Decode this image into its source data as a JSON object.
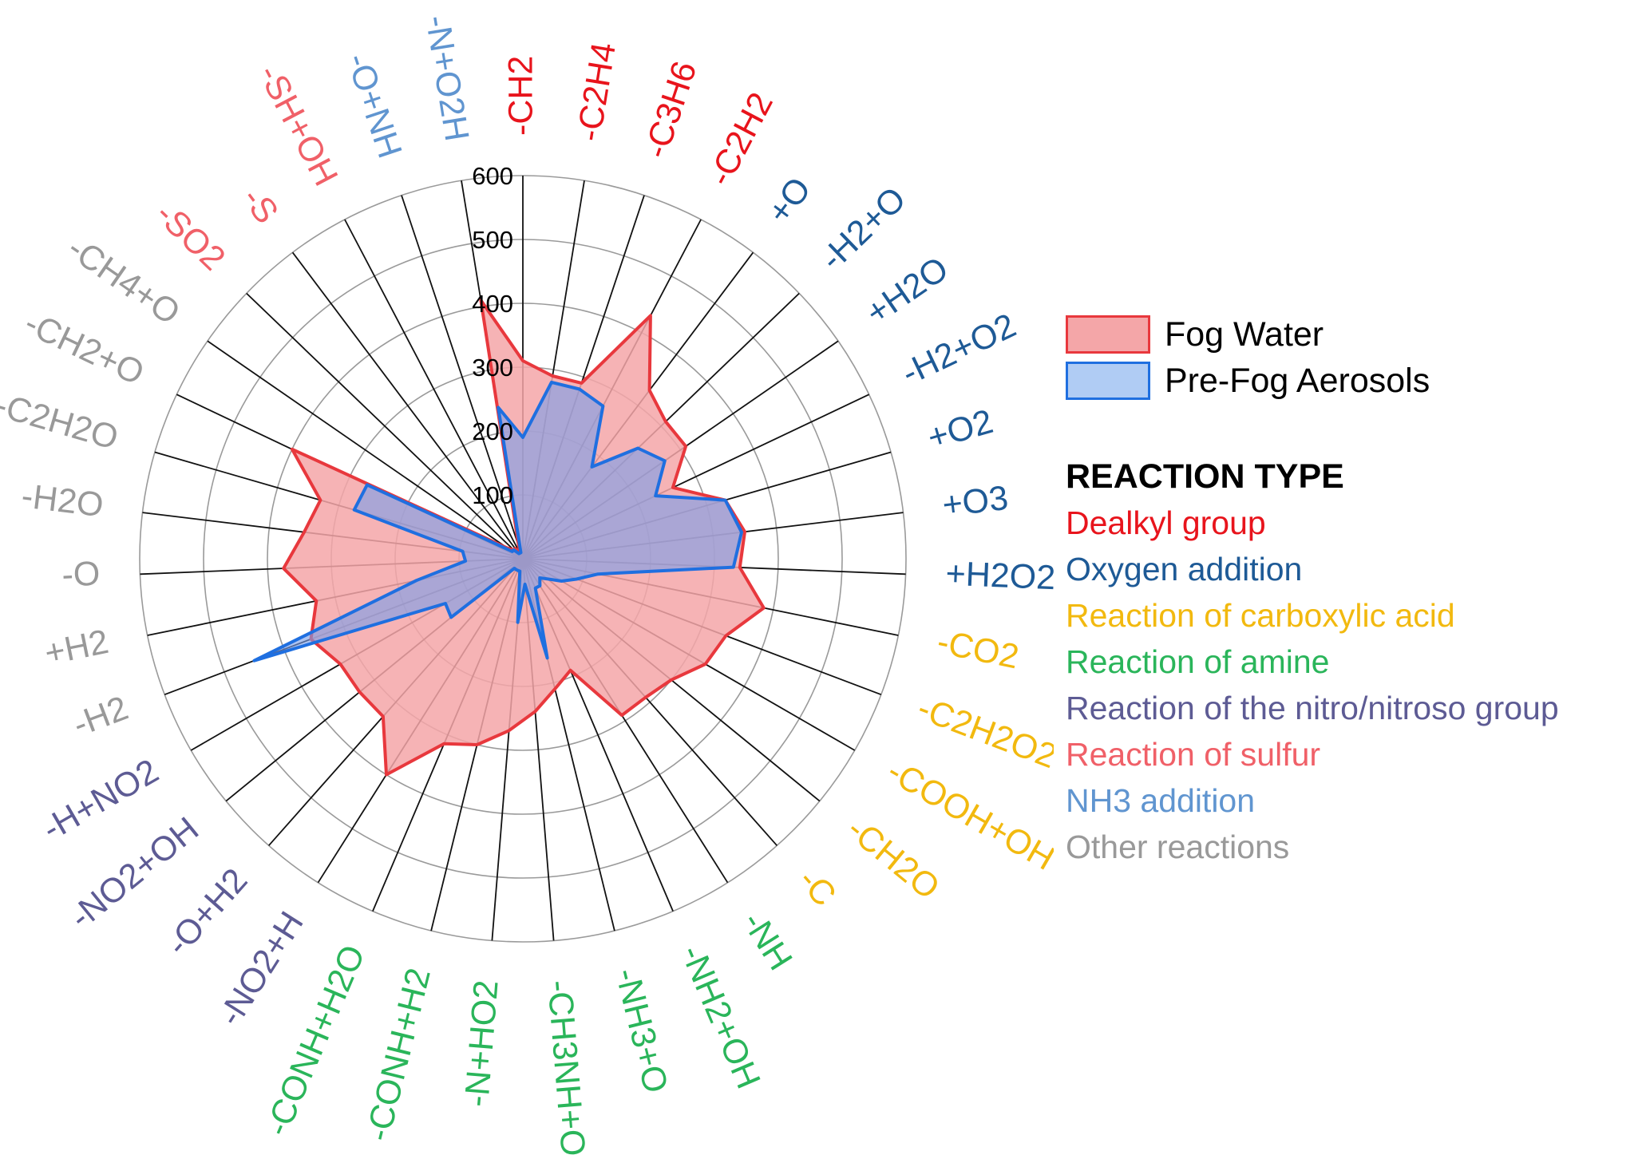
{
  "chart_data": {
    "type": "radar",
    "rmax": 600,
    "ticks": [
      100,
      200,
      300,
      400,
      500,
      600
    ],
    "tick_labels": [
      "100",
      "200",
      "300",
      "400",
      "500",
      "600"
    ],
    "categories": [
      {
        "label": "-CH2",
        "type": "dealkyl"
      },
      {
        "label": "-C2H4",
        "type": "dealkyl"
      },
      {
        "label": "-C3H6",
        "type": "dealkyl"
      },
      {
        "label": "-C2H2",
        "type": "dealkyl"
      },
      {
        "label": "+O",
        "type": "oxygen"
      },
      {
        "label": "-H2+O",
        "type": "oxygen"
      },
      {
        "label": "+H2O",
        "type": "oxygen"
      },
      {
        "label": "-H2+O2",
        "type": "oxygen"
      },
      {
        "label": "+O2",
        "type": "oxygen"
      },
      {
        "label": "+O3",
        "type": "oxygen"
      },
      {
        "label": "+H2O2",
        "type": "oxygen"
      },
      {
        "label": "-CO2",
        "type": "carboxylic"
      },
      {
        "label": "-C2H2O2",
        "type": "carboxylic"
      },
      {
        "label": "-COOH+OH",
        "type": "carboxylic"
      },
      {
        "label": "-CH2O",
        "type": "carboxylic"
      },
      {
        "label": "-C",
        "type": "carboxylic"
      },
      {
        "label": "-NH",
        "type": "amine"
      },
      {
        "label": "-NH2+OH",
        "type": "amine"
      },
      {
        "label": "-NH3+O",
        "type": "amine"
      },
      {
        "label": "-CH3NH+OH",
        "type": "amine"
      },
      {
        "label": "-N+HO2",
        "type": "amine"
      },
      {
        "label": "-CONH+H2",
        "type": "amine"
      },
      {
        "label": "-CONH+H2O",
        "type": "amine"
      },
      {
        "label": "-NO2+H",
        "type": "nitro"
      },
      {
        "label": "-O+H2",
        "type": "nitro"
      },
      {
        "label": "-NO2+OH",
        "type": "nitro"
      },
      {
        "label": "-H+NO2",
        "type": "nitro"
      },
      {
        "label": "-H2",
        "type": "other"
      },
      {
        "label": "+H2",
        "type": "other"
      },
      {
        "label": "-O",
        "type": "other"
      },
      {
        "label": "-H2O",
        "type": "other"
      },
      {
        "label": "-C2H2O",
        "type": "other"
      },
      {
        "label": "-CH2+O",
        "type": "other"
      },
      {
        "label": "-CH4+O",
        "type": "other"
      },
      {
        "label": "-SO2",
        "type": "sulfur"
      },
      {
        "label": "-S",
        "type": "sulfur"
      },
      {
        "label": "-SH+OH",
        "type": "sulfur"
      },
      {
        "label": "-O+NH",
        "type": "nh3"
      },
      {
        "label": "-N+O2H",
        "type": "nh3"
      }
    ],
    "series": [
      {
        "name": "Fog Water",
        "fill": "#f4a6a8",
        "stroke": "#e8383d",
        "values": [
          310,
          290,
          290,
          430,
          330,
          310,
          310,
          260,
          330,
          350,
          340,
          385,
          340,
          330,
          300,
          290,
          290,
          190,
          210,
          240,
          270,
          300,
          315,
          400,
          330,
          330,
          330,
          355,
          330,
          375,
          345,
          330,
          400,
          30,
          20,
          20,
          10,
          20,
          410
        ]
      },
      {
        "name": "Pre-Fog Aerosols",
        "fill": "#7a9ee8",
        "stroke": "#1f6fe0",
        "values": [
          190,
          280,
          280,
          270,
          180,
          250,
          270,
          230,
          330,
          345,
          330,
          120,
          90,
          70,
          50,
          40,
          50,
          50,
          160,
          40,
          100,
          20,
          20,
          20,
          20,
          145,
          140,
          450,
          170,
          90,
          95,
          275,
          270,
          20,
          20,
          10,
          10,
          10,
          240
        ]
      }
    ],
    "legend": {
      "position": "right",
      "entries": [
        "Fog Water",
        "Pre-Fog Aerosols"
      ]
    },
    "grid": true
  },
  "reaction_type": {
    "title": "REACTION TYPE",
    "items": [
      {
        "key": "dealkyl",
        "label": "Dealkyl group",
        "color": "#e8141c"
      },
      {
        "key": "oxygen",
        "label": "Oxygen addition",
        "color": "#1e5a96"
      },
      {
        "key": "carboxylic",
        "label": "Reaction of carboxylic acid",
        "color": "#f2b90f"
      },
      {
        "key": "amine",
        "label": "Reaction of amine",
        "color": "#2ab55a"
      },
      {
        "key": "nitro",
        "label": "Reaction of the nitro/nitroso group",
        "color": "#5d5b94"
      },
      {
        "key": "sulfur",
        "label": "Reaction of sulfur",
        "color": "#f06068"
      },
      {
        "key": "nh3",
        "label": "NH3 addition",
        "color": "#6095d0"
      },
      {
        "key": "other",
        "label": "Other reactions",
        "color": "#999999"
      }
    ]
  }
}
